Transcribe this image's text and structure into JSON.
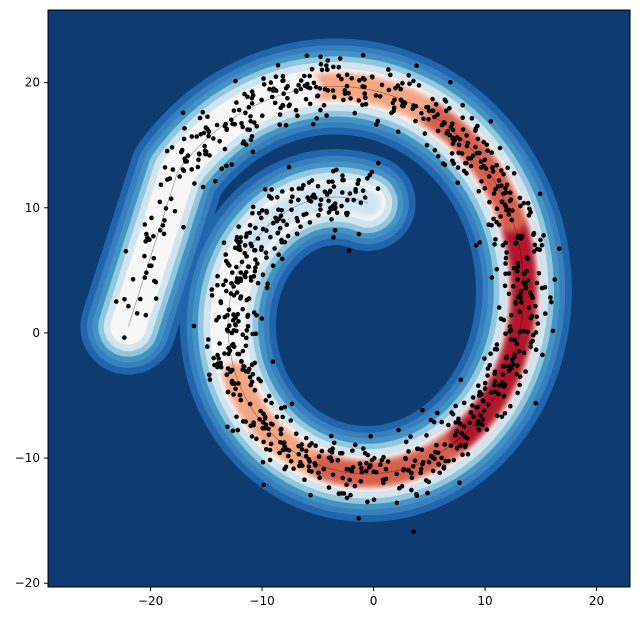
{
  "chart_data": {
    "type": "scatter",
    "subtype": "filled-contour-with-scatter",
    "title": "",
    "xlabel": "",
    "ylabel": "",
    "xlim": [
      -29.2,
      23.0
    ],
    "ylim": [
      -20.3,
      25.8
    ],
    "x_ticks": [
      -20,
      -10,
      0,
      10,
      20
    ],
    "y_ticks": [
      -20,
      -10,
      0,
      10,
      20
    ],
    "x_tick_labels": [
      "−20",
      "−10",
      "0",
      "10",
      "20"
    ],
    "y_tick_labels": [
      "−20",
      "−10",
      "0",
      "10",
      "20"
    ],
    "grid": false,
    "legend": "none",
    "colormap": "RdBu_r",
    "colors": {
      "background": "#0d3b72",
      "outer_band": "#2166ac",
      "mid_blue": "#4393c3",
      "light_blue": "#d1e5f0",
      "white": "#f7f7f7",
      "peach": "#f4a582",
      "red": "#d6604d",
      "dark_red": "#b2182b",
      "darkest_red": "#8b0f22",
      "points": "#000000"
    },
    "spiral": {
      "center": [
        -2,
        2
      ],
      "start_angle_deg": 80,
      "end_angle_deg": 505,
      "r_start": 8.5,
      "r_end": 19.0,
      "density_start": 0.25,
      "density_end": 0.95,
      "tail_end": [
        -22,
        0.5
      ]
    },
    "series": [
      {
        "n_points": 1000,
        "x_range": [
          -23.5,
          18
        ],
        "y_range": [
          -15.5,
          21.5
        ]
      }
    ]
  }
}
